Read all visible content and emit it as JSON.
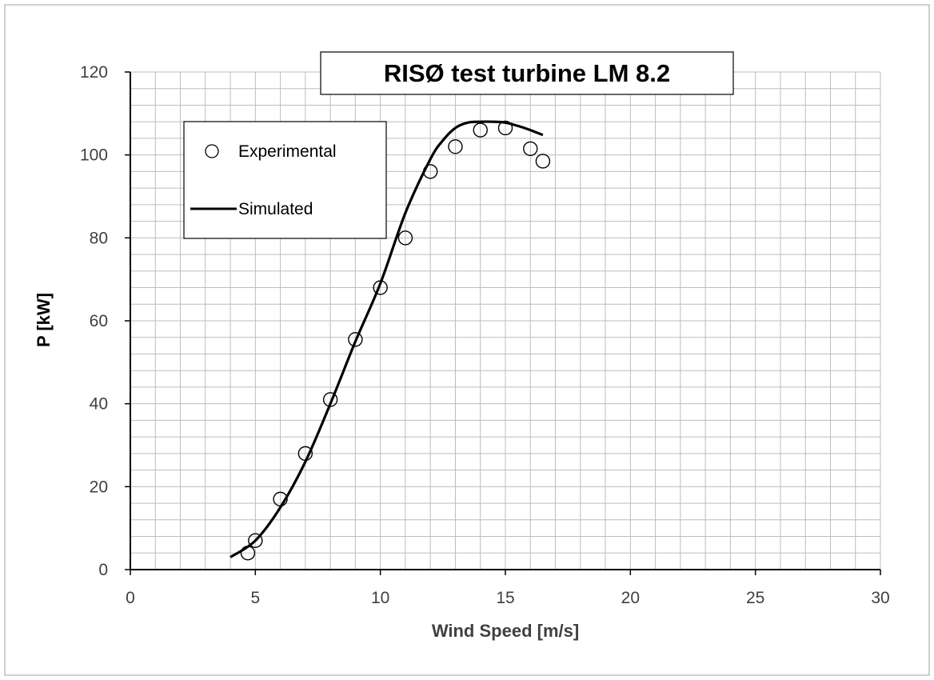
{
  "chart_data": {
    "type": "scatter",
    "title": "RISØ test turbine LM 8.2",
    "xlabel": "Wind Speed  [m/s]",
    "ylabel": "P [kW]",
    "xlim": [
      0,
      30
    ],
    "ylim": [
      0,
      120
    ],
    "xticks": [
      0,
      5,
      10,
      15,
      20,
      25,
      30
    ],
    "yticks": [
      0,
      20,
      40,
      60,
      80,
      100,
      120
    ],
    "grid": "on",
    "legend": "top-left",
    "series": [
      {
        "name": "Experimental",
        "kind": "markers",
        "color": "#000000",
        "x": [
          4.7,
          5.0,
          6.0,
          7.0,
          8.0,
          9.0,
          10.0,
          11.0,
          12.0,
          13.0,
          14.0,
          15.0,
          16.0,
          16.5
        ],
        "y": [
          4,
          7,
          17,
          28,
          41,
          55.5,
          68,
          80,
          96,
          102,
          106,
          106.5,
          101.5,
          98.5
        ]
      },
      {
        "name": "Simulated",
        "kind": "line",
        "color": "#000000",
        "x": [
          4.0,
          5.0,
          6.0,
          7.0,
          8.0,
          9.0,
          10.0,
          11.0,
          12.0,
          12.5,
          13.0,
          13.5,
          14.0,
          14.5,
          15.0,
          15.5,
          16.0,
          16.5
        ],
        "y": [
          3,
          7,
          15,
          26,
          40,
          55,
          69,
          86,
          99,
          103.5,
          106.5,
          107.8,
          108,
          108,
          107.8,
          107,
          106,
          104.8
        ]
      }
    ]
  }
}
